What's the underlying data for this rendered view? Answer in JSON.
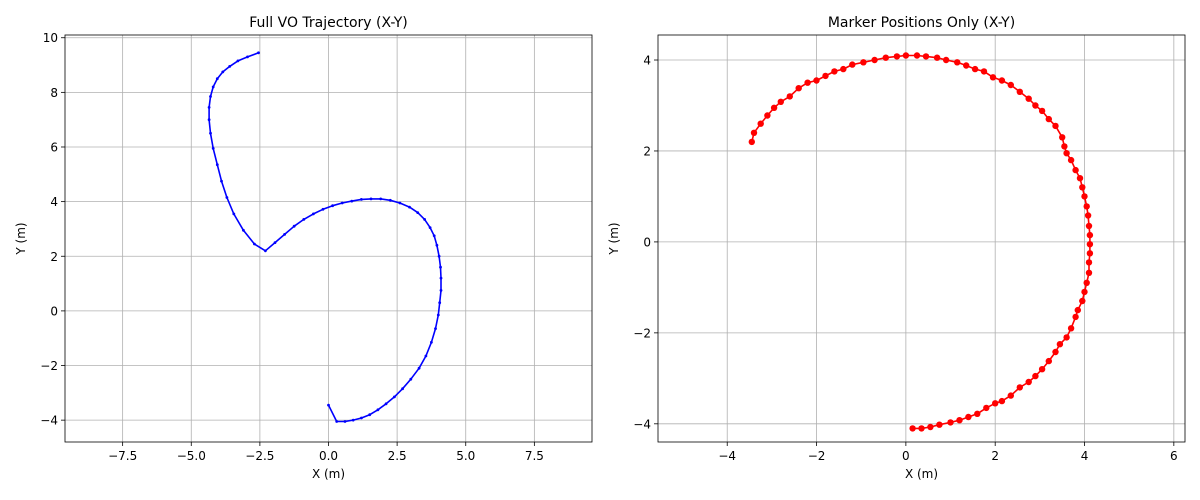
{
  "chart_data": [
    {
      "type": "line",
      "title": "Full VO Trajectory (X-Y)",
      "xlabel": "X (m)",
      "ylabel": "Y (m)",
      "xlim": [
        -9.6,
        9.6
      ],
      "ylim": [
        -4.8,
        10.1
      ],
      "xticks": [
        -7.5,
        -5.0,
        -2.5,
        0.0,
        2.5,
        5.0,
        7.5
      ],
      "xtick_labels": [
        "−7.5",
        "−5.0",
        "−2.5",
        "0.0",
        "2.5",
        "5.0",
        "7.5"
      ],
      "yticks": [
        -4,
        -2,
        0,
        2,
        4,
        6,
        8,
        10
      ],
      "ytick_labels": [
        "−4",
        "−2",
        "0",
        "2",
        "4",
        "6",
        "8",
        "10"
      ],
      "grid": true,
      "color": "#0000ff",
      "marker": "small-dot",
      "series": [
        {
          "x": [
            0.0,
            0.3,
            0.6,
            0.9,
            1.2,
            1.5,
            1.8,
            2.1,
            2.4,
            2.7,
            3.0,
            3.3,
            3.55,
            3.75,
            3.9,
            4.0,
            4.05,
            4.1,
            4.1,
            4.08,
            4.03,
            3.95,
            3.85,
            3.7,
            3.5,
            3.25,
            2.95,
            2.6,
            2.25,
            1.9,
            1.55,
            1.2,
            0.85,
            0.5,
            0.15,
            -0.2,
            -0.55,
            -0.9,
            -1.25,
            -1.6,
            -1.95,
            -2.3,
            -2.7,
            -3.1,
            -3.45,
            -3.7,
            -3.9,
            -4.05,
            -4.2,
            -4.3,
            -4.35,
            -4.35,
            -4.3,
            -4.2,
            -4.05,
            -3.85,
            -3.6,
            -3.3,
            -2.95,
            -2.55
          ],
          "y": [
            -3.45,
            -4.05,
            -4.05,
            -4.0,
            -3.92,
            -3.8,
            -3.62,
            -3.4,
            -3.15,
            -2.85,
            -2.5,
            -2.1,
            -1.65,
            -1.15,
            -0.65,
            -0.15,
            0.3,
            0.75,
            1.2,
            1.6,
            2.0,
            2.4,
            2.75,
            3.05,
            3.35,
            3.6,
            3.8,
            3.95,
            4.05,
            4.1,
            4.1,
            4.08,
            4.02,
            3.95,
            3.85,
            3.72,
            3.55,
            3.35,
            3.1,
            2.8,
            2.5,
            2.2,
            2.45,
            2.95,
            3.55,
            4.15,
            4.75,
            5.35,
            5.95,
            6.5,
            7.0,
            7.45,
            7.85,
            8.2,
            8.5,
            8.75,
            8.95,
            9.15,
            9.3,
            9.45
          ]
        }
      ]
    },
    {
      "type": "line",
      "title": "Marker Positions Only (X-Y)",
      "xlabel": "X (m)",
      "ylabel": "Y (m)",
      "xlim": [
        -5.55,
        6.25
      ],
      "ylim": [
        -4.4,
        4.55
      ],
      "xticks": [
        -4,
        -2,
        0,
        2,
        4,
        6
      ],
      "xtick_labels": [
        "−4",
        "−2",
        "0",
        "2",
        "4",
        "6"
      ],
      "yticks": [
        -4,
        -2,
        0,
        2,
        4
      ],
      "ytick_labels": [
        "−4",
        "−2",
        "0",
        "2",
        "4"
      ],
      "grid": true,
      "color": "#ff0000",
      "marker": "circle",
      "series": [
        {
          "x": [
            0.15,
            0.35,
            0.55,
            0.75,
            1.0,
            1.2,
            1.4,
            1.6,
            1.8,
            2.0,
            2.15,
            2.35,
            2.55,
            2.75,
            2.9,
            3.05,
            3.2,
            3.35,
            3.45,
            3.6,
            3.7,
            3.8,
            3.85,
            3.95,
            4.0,
            4.05,
            4.1,
            4.1,
            4.12,
            4.12,
            4.12,
            4.1,
            4.08,
            4.05,
            4.0,
            3.95,
            3.9,
            3.8,
            3.7,
            3.6,
            3.55,
            3.5,
            3.35,
            3.2,
            3.05,
            2.9,
            2.75,
            2.55,
            2.35,
            2.15,
            1.95,
            1.75,
            1.55,
            1.35,
            1.15,
            0.9,
            0.7,
            0.45,
            0.25,
            0.0,
            -0.2,
            -0.45,
            -0.7,
            -0.95,
            -1.2,
            -1.4,
            -1.6,
            -1.8,
            -2.0,
            -2.2,
            -2.4,
            -2.6,
            -2.8,
            -2.95,
            -3.1,
            -3.25,
            -3.4,
            -3.45
          ],
          "y": [
            -4.1,
            -4.1,
            -4.07,
            -4.02,
            -3.97,
            -3.92,
            -3.85,
            -3.78,
            -3.65,
            -3.55,
            -3.5,
            -3.38,
            -3.2,
            -3.08,
            -2.95,
            -2.8,
            -2.62,
            -2.42,
            -2.25,
            -2.1,
            -1.9,
            -1.65,
            -1.5,
            -1.3,
            -1.1,
            -0.9,
            -0.68,
            -0.45,
            -0.25,
            -0.05,
            0.15,
            0.35,
            0.58,
            0.78,
            1.0,
            1.2,
            1.4,
            1.58,
            1.8,
            1.95,
            2.1,
            2.3,
            2.55,
            2.7,
            2.88,
            3.0,
            3.15,
            3.3,
            3.45,
            3.55,
            3.62,
            3.75,
            3.8,
            3.88,
            3.95,
            4.0,
            4.05,
            4.08,
            4.1,
            4.1,
            4.08,
            4.05,
            4.0,
            3.95,
            3.9,
            3.8,
            3.75,
            3.65,
            3.55,
            3.5,
            3.38,
            3.2,
            3.08,
            2.95,
            2.78,
            2.6,
            2.4,
            2.2
          ]
        }
      ]
    }
  ]
}
